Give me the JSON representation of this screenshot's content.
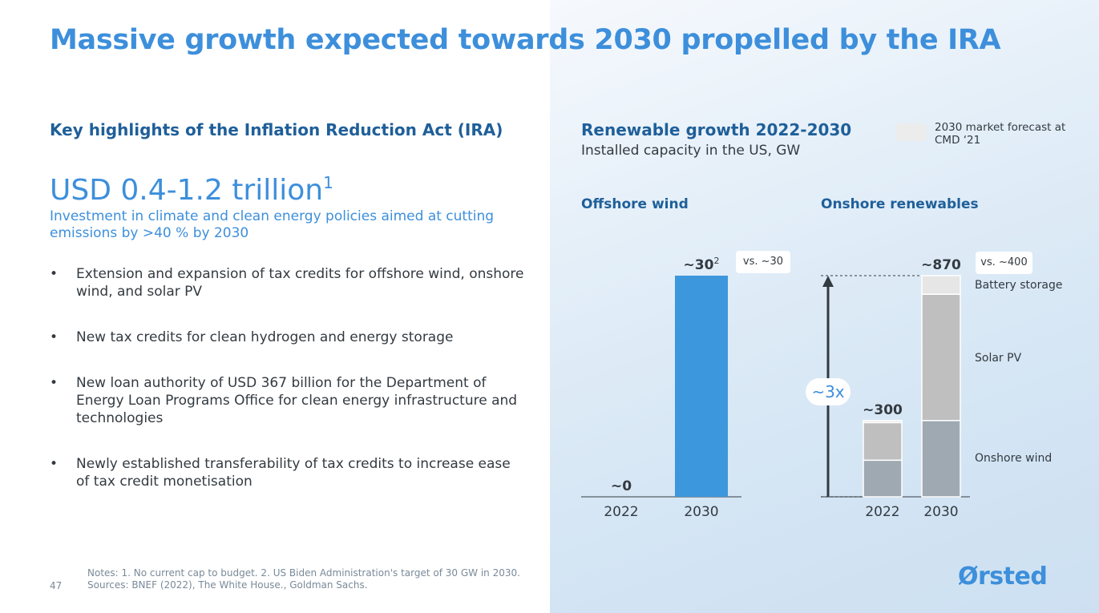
{
  "title": "Massive growth expected towards 2030 propelled by the IRA",
  "left": {
    "heading": "Key highlights of the Inflation Reduction Act (IRA)",
    "big_number": "USD 0.4-1.2 trillion",
    "big_number_sup": "1",
    "big_sub": "Investment in climate and clean energy policies aimed at cutting emissions by >40 % by 2030",
    "bullet_symbol": "•",
    "bullets": [
      "Extension and expansion of tax credits for offshore wind, onshore wind, and solar PV",
      "New tax credits for clean hydrogen and energy storage",
      "New loan authority of USD 367 billion for the Department of Energy Loan Programs Office for clean energy infrastructure and technologies",
      "Newly established transferability of tax credits to increase ease of tax credit monetisation"
    ]
  },
  "footer": {
    "page_number": "47",
    "notes": "Notes: 1. No current cap to budget. 2. US Biden Administration's target of 30 GW in 2030.",
    "sources": "Sources: BNEF (2022), The White House., Goldman Sachs.",
    "logo": "Ørsted"
  },
  "chart_header": {
    "title": "Renewable growth 2022-2030",
    "subtitle": "Installed capacity in the US, GW",
    "legend_label": "2030 market forecast at CMD ‘21"
  },
  "chart_data": [
    {
      "type": "bar",
      "title": "Offshore wind",
      "categories": [
        "2022",
        "2030"
      ],
      "values": [
        0,
        30
      ],
      "data_labels": [
        "~0",
        "~30"
      ],
      "data_label_sup": [
        "",
        "2"
      ],
      "comparison": "vs. ~30",
      "color": "#3d97dd"
    },
    {
      "type": "bar",
      "stacked": true,
      "title": "Onshore renewables",
      "categories": [
        "2022",
        "2030"
      ],
      "series": [
        {
          "name": "Onshore wind",
          "values": [
            144,
            300
          ],
          "color": "#9ea9b2"
        },
        {
          "name": "Solar PV",
          "values": [
            148,
            497
          ],
          "color": "#bfbfbf"
        },
        {
          "name": "Battery storage",
          "values": [
            8,
            73
          ],
          "color": "#e6e6e6"
        }
      ],
      "totals": [
        300,
        870
      ],
      "data_labels": [
        "~300",
        "~870"
      ],
      "comparison": "vs. ~400",
      "growth_label": "~3x"
    }
  ]
}
